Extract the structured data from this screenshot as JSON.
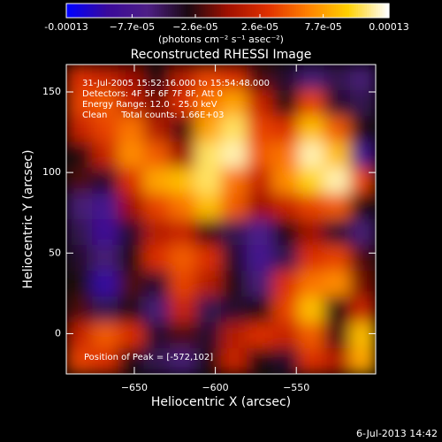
{
  "chart_data": {
    "type": "heatmap",
    "title": "Reconstructed RHESSI Image",
    "colorbar_label": "(photons cm⁻² s⁻¹ asec⁻²)",
    "xlabel": "Heliocentric X (arcsec)",
    "ylabel": "Heliocentric Y (arcsec)",
    "annotations": [
      "31-Jul-2005 15:52:16.000 to 15:54:48.000",
      "Detectors: 4F 5F 6F 7F 8F, Att 0",
      "Energy Range: 12.0 - 25.0 keV",
      "Clean     Total counts: 1.66E+03"
    ],
    "peak_label": "Position of Peak = [-572,102]",
    "footer": "6-Jul-2013 14:42",
    "xlim": [
      -692,
      -501
    ],
    "ylim": [
      -25,
      167
    ],
    "xticks": [
      {
        "value": -650,
        "label": "−650"
      },
      {
        "value": -600,
        "label": "−600"
      },
      {
        "value": -550,
        "label": "−550"
      }
    ],
    "yticks": [
      0,
      50,
      100,
      150
    ],
    "zlim": [
      -0.00013,
      0.00013
    ],
    "zticks": [
      {
        "value": -0.00013,
        "label": "-0.00013"
      },
      {
        "value": -7.7e-05,
        "label": "−7.7e-05"
      },
      {
        "value": -2.6e-05,
        "label": "−2.6e-05"
      },
      {
        "value": 2.6e-05,
        "label": "2.6e-05"
      },
      {
        "value": 7.7e-05,
        "label": "7.7e-05"
      },
      {
        "value": 0.00013,
        "label": "0.00013"
      }
    ],
    "colormap": [
      "#0000ff",
      "#3a0a9a",
      "#4e1f86",
      "#1a0812",
      "#a01000",
      "#e03000",
      "#ff8000",
      "#ffd000",
      "#ffffff"
    ],
    "z": [
      [
        3e-05,
        2e-05,
        0,
        -3e-05,
        1e-05,
        4e-05,
        3e-05,
        -2e-05,
        -4e-05,
        -6e-05,
        -5e-05,
        -6e-05
      ],
      [
        4e-05,
        5e-05,
        2e-05,
        -1e-05,
        3e-05,
        6e-05,
        8e-05,
        2e-05,
        -3e-05,
        4e-05,
        -4e-05,
        -5e-05
      ],
      [
        2e-05,
        4e-05,
        6e-05,
        1e-05,
        -2e-05,
        8e-05,
        0.00011,
        4e-05,
        3e-05,
        9e-05,
        5e-05,
        -3e-05
      ],
      [
        -3e-05,
        2e-05,
        7e-05,
        5e-05,
        0,
        0.00011,
        0.00012,
        5e-05,
        6e-05,
        0.00012,
        9e-05,
        -8e-05
      ],
      [
        -2e-05,
        -4e-05,
        3e-05,
        8e-05,
        9e-05,
        0.00011,
        6e-05,
        2e-05,
        7e-05,
        0.0001,
        0.00012,
        4e-05
      ],
      [
        -6e-05,
        -8e-05,
        0,
        4e-05,
        6e-05,
        9e-05,
        5e-05,
        0,
        2e-05,
        4e-05,
        5e-05,
        -3e-05
      ],
      [
        -5e-05,
        -9e-05,
        -4e-05,
        1e-05,
        2e-05,
        -2e-05,
        -5e-05,
        -7e-05,
        -3e-05,
        0,
        -4e-05,
        -6e-05
      ],
      [
        -4e-05,
        -6e-05,
        -3e-05,
        3e-05,
        5e-05,
        3e-05,
        -4e-05,
        -8e-05,
        -5e-05,
        3e-05,
        4e-05,
        -2e-05
      ],
      [
        -3e-05,
        -0.0001,
        -2e-05,
        -4e-05,
        4e-05,
        1e-05,
        -3e-05,
        -6e-05,
        3e-05,
        6e-05,
        7e-05,
        -1e-05
      ],
      [
        -2e-05,
        -5e-05,
        -3e-05,
        -6e-05,
        2e-05,
        -5e-05,
        -4e-05,
        -3e-05,
        4e-05,
        9e-05,
        -3e-05,
        2e-05
      ],
      [
        2e-05,
        5e-05,
        3e-05,
        -4e-05,
        -2e-05,
        -4e-05,
        1e-05,
        3e-05,
        2e-05,
        5e-05,
        -2e-05,
        9e-05
      ],
      [
        4e-05,
        3e-05,
        -3e-05,
        -5e-05,
        -6e-05,
        -3e-05,
        2e-05,
        -3e-05,
        -4e-05,
        3e-05,
        1e-05,
        8e-05
      ]
    ]
  }
}
